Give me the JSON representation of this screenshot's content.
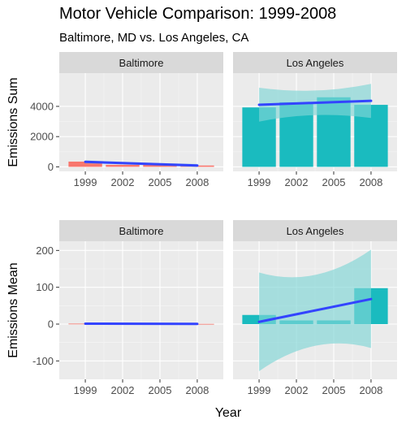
{
  "title": "Motor Vehicle Comparison: 1999-2008",
  "subtitle": "Baltimore, MD vs. Los Angeles, CA",
  "colors": {
    "baltimore_bar": "#F8766D",
    "losangeles_bar": "#1ABBBF",
    "trend_line": "#3344FF",
    "panel_bg": "#EBEBEB",
    "strip_bg": "#D9D9D9"
  },
  "chart_data": {
    "type": "bar",
    "xlabel": "Year",
    "x_categories": [
      "1999",
      "2002",
      "2005",
      "2008"
    ],
    "panels_columns": [
      "Baltimore",
      "Los Angeles"
    ],
    "grid": true,
    "rows": [
      {
        "ylabel": "Emissions Sum",
        "ylim": [
          -300,
          6200
        ],
        "yticks": [
          "0",
          "2000",
          "4000"
        ],
        "yticks_values": [
          0,
          2000,
          4000
        ],
        "series": [
          {
            "name": "Baltimore",
            "values": [
              346.8,
              134.3,
              130.4,
              88.3
            ],
            "trend": [
              331,
              88
            ],
            "band_lower": [
              227,
              -23
            ],
            "band_upper": [
              436,
              200
            ]
          },
          {
            "name": "Los Angeles",
            "values": [
              3931.1,
              4274.0,
              4601.4,
              4101.3
            ],
            "trend": [
              4105,
              4365
            ],
            "band_lower": [
              2990,
              3230
            ],
            "band_upper": [
              5230,
              5490
            ]
          }
        ]
      },
      {
        "ylabel": "Emissions Mean",
        "ylim": [
          -150,
          225
        ],
        "yticks": [
          "-100",
          "0",
          "100",
          "200"
        ],
        "yticks_values": [
          -100,
          0,
          100,
          200
        ],
        "series": [
          {
            "name": "Baltimore",
            "values": [
              1.2,
              0.9,
              0.8,
              0.5
            ],
            "trend": [
              1.2,
              0.5
            ],
            "band_lower": [
              0.6,
              -0.2
            ],
            "band_upper": [
              1.8,
              1.1
            ]
          },
          {
            "name": "Los Angeles",
            "values": [
              24.8,
              9.9,
              10.0,
              97.6
            ],
            "trend": [
              6,
              68
            ],
            "band_lower": [
              -128,
              -65
            ],
            "band_upper": [
              140,
              202
            ]
          }
        ]
      }
    ]
  }
}
